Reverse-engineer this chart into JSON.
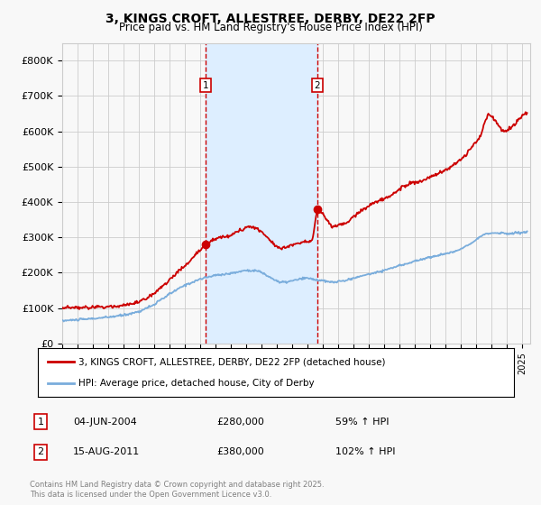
{
  "title": "3, KINGS CROFT, ALLESTREE, DERBY, DE22 2FP",
  "subtitle": "Price paid vs. HM Land Registry's House Price Index (HPI)",
  "ylim": [
    0,
    850000
  ],
  "yticks": [
    0,
    100000,
    200000,
    300000,
    400000,
    500000,
    600000,
    700000,
    800000
  ],
  "ytick_labels": [
    "£0",
    "£100K",
    "£200K",
    "£300K",
    "£400K",
    "£500K",
    "£600K",
    "£700K",
    "£800K"
  ],
  "xlim_start": 1995.0,
  "xlim_end": 2025.5,
  "sale1_date": 2004.33,
  "sale1_price": 280000,
  "sale1_label": "04-JUN-2004",
  "sale1_pct": "59%",
  "sale2_date": 2011.62,
  "sale2_price": 380000,
  "sale2_label": "15-AUG-2011",
  "sale2_pct": "102%",
  "legend_line1": "3, KINGS CROFT, ALLESTREE, DERBY, DE22 2FP (detached house)",
  "legend_line2": "HPI: Average price, detached house, City of Derby",
  "footnote": "Contains HM Land Registry data © Crown copyright and database right 2025.\nThis data is licensed under the Open Government Licence v3.0.",
  "red_color": "#cc0000",
  "blue_color": "#7aaddc",
  "shade_color": "#ddeeff",
  "background_color": "#f8f8f8",
  "grid_color": "#cccccc"
}
